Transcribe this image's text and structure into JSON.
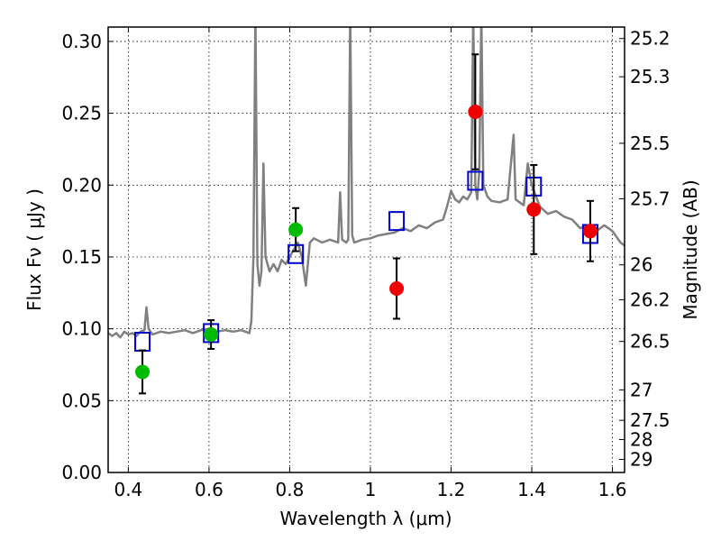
{
  "chart_data": {
    "type": "scatter",
    "title": "",
    "xlabel": "Wavelength  λ (μm)",
    "ylabel": "Flux  Fν  ( μJy )",
    "ylabel_right": "Magnitude (AB)",
    "xlim": [
      0.35,
      1.63
    ],
    "ylim": [
      0.0,
      0.31
    ],
    "grid": true,
    "x_ticks": [
      {
        "value": 0.4,
        "label": "0.4"
      },
      {
        "value": 0.6,
        "label": "0.6"
      },
      {
        "value": 0.8,
        "label": "0.8"
      },
      {
        "value": 1.0,
        "label": "1"
      },
      {
        "value": 1.2,
        "label": "1.2"
      },
      {
        "value": 1.4,
        "label": "1.4"
      },
      {
        "value": 1.6,
        "label": "1.6"
      }
    ],
    "y_ticks": [
      {
        "value": 0.0,
        "label": "0.00"
      },
      {
        "value": 0.05,
        "label": "0.05"
      },
      {
        "value": 0.1,
        "label": "0.10"
      },
      {
        "value": 0.15,
        "label": "0.15"
      },
      {
        "value": 0.2,
        "label": "0.20"
      },
      {
        "value": 0.25,
        "label": "0.25"
      },
      {
        "value": 0.3,
        "label": "0.30"
      }
    ],
    "right_ticks": [
      {
        "flux": 0.302,
        "label": "25.2"
      },
      {
        "flux": 0.2754,
        "label": "25.3"
      },
      {
        "flux": 0.2291,
        "label": "25.5"
      },
      {
        "flux": 0.1905,
        "label": "25.7"
      },
      {
        "flux": 0.1445,
        "label": "26"
      },
      {
        "flux": 0.1202,
        "label": "26.2"
      },
      {
        "flux": 0.0912,
        "label": "26.5"
      },
      {
        "flux": 0.0575,
        "label": "27"
      },
      {
        "flux": 0.0363,
        "label": "27.5"
      },
      {
        "flux": 0.0229,
        "label": "28"
      },
      {
        "flux": 0.0091,
        "label": "29"
      }
    ],
    "colors": {
      "spectrum": "#808080",
      "model_box": "#0000cc",
      "green_points": "#00bb00",
      "red_points": "#ee0000",
      "error_bars": "#000000"
    },
    "series": [
      {
        "kind": "line",
        "color": "#808080",
        "points": [
          [
            0.35,
            0.097
          ],
          [
            0.36,
            0.095
          ],
          [
            0.37,
            0.097
          ],
          [
            0.38,
            0.094
          ],
          [
            0.39,
            0.098
          ],
          [
            0.4,
            0.096
          ],
          [
            0.41,
            0.097
          ],
          [
            0.42,
            0.095
          ],
          [
            0.43,
            0.098
          ],
          [
            0.44,
            0.099
          ],
          [
            0.445,
            0.115
          ],
          [
            0.45,
            0.1
          ],
          [
            0.46,
            0.096
          ],
          [
            0.48,
            0.098
          ],
          [
            0.5,
            0.097
          ],
          [
            0.52,
            0.098
          ],
          [
            0.54,
            0.099
          ],
          [
            0.56,
            0.097
          ],
          [
            0.58,
            0.099
          ],
          [
            0.6,
            0.1
          ],
          [
            0.62,
            0.098
          ],
          [
            0.64,
            0.099
          ],
          [
            0.66,
            0.098
          ],
          [
            0.68,
            0.099
          ],
          [
            0.7,
            0.097
          ],
          [
            0.705,
            0.105
          ],
          [
            0.71,
            0.15
          ],
          [
            0.715,
            0.32
          ],
          [
            0.72,
            0.145
          ],
          [
            0.725,
            0.13
          ],
          [
            0.73,
            0.14
          ],
          [
            0.735,
            0.215
          ],
          [
            0.74,
            0.15
          ],
          [
            0.75,
            0.14
          ],
          [
            0.76,
            0.145
          ],
          [
            0.77,
            0.14
          ],
          [
            0.78,
            0.148
          ],
          [
            0.79,
            0.145
          ],
          [
            0.8,
            0.15
          ],
          [
            0.81,
            0.155
          ],
          [
            0.82,
            0.16
          ],
          [
            0.83,
            0.15
          ],
          [
            0.84,
            0.13
          ],
          [
            0.845,
            0.145
          ],
          [
            0.85,
            0.16
          ],
          [
            0.86,
            0.163
          ],
          [
            0.88,
            0.16
          ],
          [
            0.9,
            0.162
          ],
          [
            0.92,
            0.16
          ],
          [
            0.925,
            0.195
          ],
          [
            0.93,
            0.162
          ],
          [
            0.94,
            0.16
          ],
          [
            0.945,
            0.162
          ],
          [
            0.95,
            0.32
          ],
          [
            0.955,
            0.165
          ],
          [
            0.96,
            0.16
          ],
          [
            0.98,
            0.162
          ],
          [
            1.0,
            0.163
          ],
          [
            1.02,
            0.165
          ],
          [
            1.04,
            0.166
          ],
          [
            1.06,
            0.167
          ],
          [
            1.08,
            0.17
          ],
          [
            1.1,
            0.168
          ],
          [
            1.12,
            0.172
          ],
          [
            1.14,
            0.17
          ],
          [
            1.16,
            0.174
          ],
          [
            1.18,
            0.176
          ],
          [
            1.19,
            0.185
          ],
          [
            1.2,
            0.196
          ],
          [
            1.21,
            0.19
          ],
          [
            1.22,
            0.188
          ],
          [
            1.23,
            0.192
          ],
          [
            1.24,
            0.19
          ],
          [
            1.25,
            0.195
          ],
          [
            1.255,
            0.32
          ],
          [
            1.26,
            0.2
          ],
          [
            1.265,
            0.19
          ],
          [
            1.27,
            0.21
          ],
          [
            1.275,
            0.32
          ],
          [
            1.28,
            0.2
          ],
          [
            1.29,
            0.192
          ],
          [
            1.3,
            0.189
          ],
          [
            1.32,
            0.188
          ],
          [
            1.34,
            0.19
          ],
          [
            1.355,
            0.235
          ],
          [
            1.36,
            0.19
          ],
          [
            1.38,
            0.186
          ],
          [
            1.39,
            0.215
          ],
          [
            1.4,
            0.2
          ],
          [
            1.42,
            0.185
          ],
          [
            1.44,
            0.18
          ],
          [
            1.46,
            0.182
          ],
          [
            1.48,
            0.178
          ],
          [
            1.5,
            0.176
          ],
          [
            1.52,
            0.17
          ],
          [
            1.54,
            0.172
          ],
          [
            1.56,
            0.168
          ],
          [
            1.58,
            0.172
          ],
          [
            1.6,
            0.168
          ],
          [
            1.62,
            0.16
          ],
          [
            1.63,
            0.158
          ]
        ]
      },
      {
        "kind": "boxes",
        "color": "#0000cc",
        "points": [
          [
            0.435,
            0.091
          ],
          [
            0.605,
            0.097
          ],
          [
            0.815,
            0.152
          ],
          [
            1.065,
            0.175
          ],
          [
            1.26,
            0.203
          ],
          [
            1.405,
            0.199
          ],
          [
            1.545,
            0.166
          ]
        ]
      },
      {
        "kind": "points",
        "color": "#00bb00",
        "points": [
          {
            "x": 0.435,
            "y": 0.07,
            "err": 0.015
          },
          {
            "x": 0.605,
            "y": 0.096,
            "err": 0.01
          },
          {
            "x": 0.815,
            "y": 0.169,
            "err": 0.015
          }
        ]
      },
      {
        "kind": "points",
        "color": "#ee0000",
        "points": [
          {
            "x": 1.065,
            "y": 0.128,
            "err": 0.021
          },
          {
            "x": 1.26,
            "y": 0.251,
            "err": 0.04
          },
          {
            "x": 1.405,
            "y": 0.183,
            "err": 0.031
          },
          {
            "x": 1.545,
            "y": 0.168,
            "err": 0.021
          }
        ]
      }
    ]
  }
}
